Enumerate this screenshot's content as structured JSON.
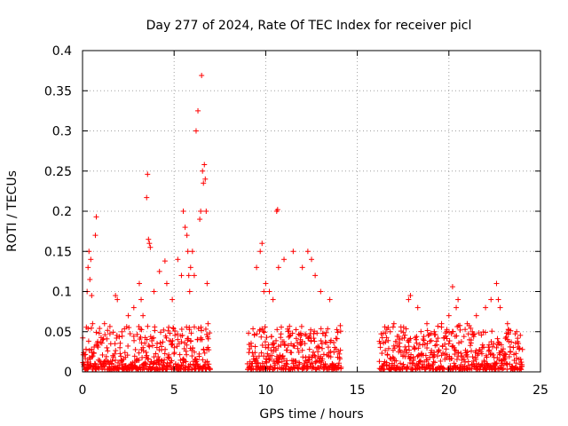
{
  "chart_data": {
    "type": "scatter",
    "title": "Day 277 of 2024, Rate Of TEC Index for receiver picl",
    "xlabel": "GPS time / hours",
    "ylabel": "ROTI / TECUs",
    "xlim": [
      0,
      25
    ],
    "ylim": [
      0,
      0.4
    ],
    "xticks": [
      0,
      5,
      10,
      15,
      20,
      25
    ],
    "yticks": [
      0,
      0.05,
      0.1,
      0.15,
      0.2,
      0.25,
      0.3,
      0.35,
      0.4
    ],
    "xtick_labels": [
      "0",
      "5",
      "10",
      "15",
      "20",
      "25"
    ],
    "ytick_labels": [
      "0",
      "0.05",
      "0.1",
      "0.15",
      "0.2",
      "0.25",
      "0.3",
      "0.35",
      "0.4"
    ],
    "grid": true,
    "marker": "+",
    "color": "#ff0000",
    "series": [
      {
        "name": "ROTI",
        "segments_hours": [
          [
            0.0,
            6.95
          ],
          [
            9.0,
            14.1
          ],
          [
            16.2,
            24.0
          ]
        ],
        "x": [
          0.3,
          0.35,
          0.4,
          0.25,
          0.45,
          0.5,
          0.55,
          0.7,
          0.75,
          1.2,
          1.8,
          1.9,
          2.5,
          2.8,
          3.1,
          3.2,
          3.3,
          3.5,
          3.55,
          3.6,
          3.65,
          3.7,
          3.9,
          4.2,
          4.5,
          4.6,
          4.9,
          5.2,
          5.4,
          5.5,
          5.6,
          5.7,
          5.75,
          5.8,
          5.85,
          5.9,
          6.0,
          6.1,
          6.2,
          6.3,
          6.4,
          6.45,
          6.5,
          6.55,
          6.6,
          6.65,
          6.7,
          6.75,
          6.8,
          6.85,
          9.5,
          9.7,
          9.8,
          9.9,
          10.0,
          10.2,
          10.4,
          10.6,
          10.65,
          10.7,
          11.0,
          11.5,
          12.0,
          12.3,
          12.5,
          12.7,
          13.0,
          13.5,
          16.8,
          17.0,
          17.3,
          17.8,
          17.9,
          18.3,
          18.8,
          19.2,
          19.6,
          20.0,
          20.2,
          20.4,
          20.5,
          21.0,
          21.5,
          22.0,
          22.3,
          22.6,
          22.7,
          22.8,
          23.2,
          23.7
        ],
        "y": [
          0.13,
          0.15,
          0.115,
          0.1,
          0.14,
          0.095,
          0.06,
          0.17,
          0.193,
          0.06,
          0.095,
          0.09,
          0.07,
          0.08,
          0.11,
          0.09,
          0.07,
          0.217,
          0.246,
          0.165,
          0.16,
          0.155,
          0.1,
          0.125,
          0.138,
          0.11,
          0.09,
          0.14,
          0.12,
          0.2,
          0.18,
          0.17,
          0.15,
          0.12,
          0.1,
          0.13,
          0.15,
          0.12,
          0.3,
          0.325,
          0.19,
          0.2,
          0.369,
          0.25,
          0.235,
          0.258,
          0.24,
          0.2,
          0.11,
          0.06,
          0.13,
          0.15,
          0.16,
          0.1,
          0.11,
          0.1,
          0.09,
          0.2,
          0.202,
          0.13,
          0.14,
          0.15,
          0.13,
          0.15,
          0.14,
          0.12,
          0.1,
          0.09,
          0.05,
          0.06,
          0.04,
          0.09,
          0.095,
          0.08,
          0.06,
          0.05,
          0.06,
          0.07,
          0.106,
          0.08,
          0.09,
          0.06,
          0.07,
          0.08,
          0.09,
          0.11,
          0.09,
          0.08,
          0.06,
          0.05
        ]
      }
    ]
  }
}
